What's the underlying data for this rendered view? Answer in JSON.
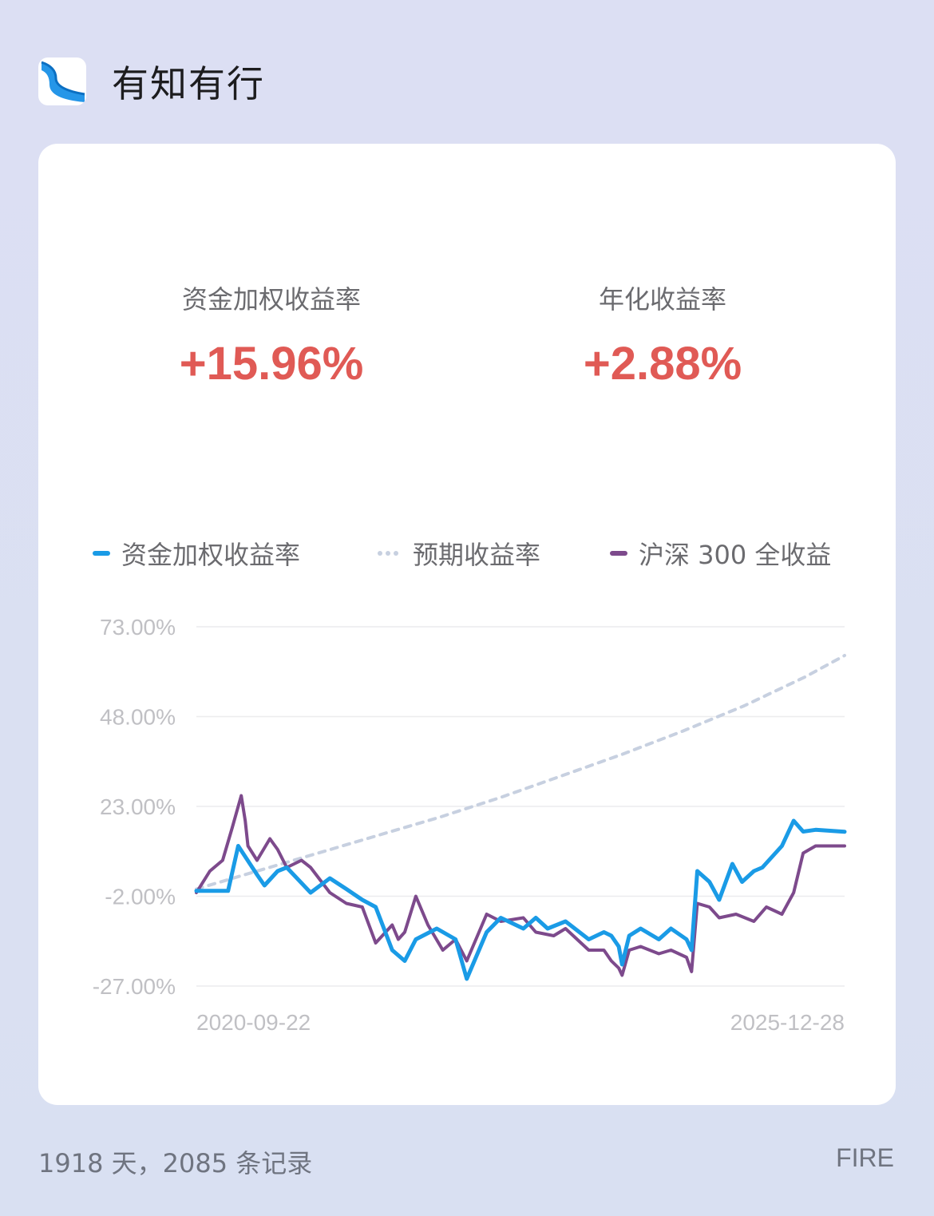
{
  "app": {
    "name": "有知有行",
    "logo_icon": "wave-logo-icon"
  },
  "stats": [
    {
      "label": "资金加权收益率",
      "value": "+15.96%"
    },
    {
      "label": "年化收益率",
      "value": "+2.88%"
    }
  ],
  "colors": {
    "positive": "#e05a55",
    "fund": "#1a9be6",
    "expected": "#c7d0e0",
    "index": "#7d4a8c"
  },
  "chart_data": {
    "type": "line",
    "y_ticks": [
      "73.00%",
      "48.00%",
      "23.00%",
      "-2.00%",
      "-27.00%"
    ],
    "ylim": [
      -27,
      73
    ],
    "grid": true,
    "x_ticks": [
      "2020-09-22",
      "2025-12-28"
    ],
    "xlim": [
      "2020-09-22",
      "2025-12-28"
    ],
    "legend_position": "top",
    "series": [
      {
        "name": "资金加权收益率",
        "style": "solid",
        "color": "#1a9be6",
        "x": [
          "2020-09-22",
          "2020-11-01",
          "2020-12-09",
          "2020-12-17",
          "2020-12-25",
          "2021-01-24",
          "2021-03-21",
          "2021-04-12",
          "2021-05-21",
          "2021-06-17",
          "2021-08-27",
          "2021-10-23",
          "2021-12-11",
          "2022-01-27",
          "2022-03-08",
          "2022-04-26",
          "2022-06-02",
          "2022-07-05",
          "2022-09-05",
          "2022-10-31",
          "2022-12-03",
          "2023-01-31",
          "2023-03-14",
          "2023-05-20",
          "2023-06-26",
          "2023-07-31",
          "2023-09-22",
          "2023-11-30",
          "2024-01-14",
          "2024-02-05",
          "2024-02-27",
          "2024-03-08",
          "2024-03-29",
          "2024-05-02",
          "2024-06-25",
          "2024-07-31",
          "2024-09-15",
          "2024-09-30",
          "2024-10-17",
          "2024-11-22",
          "2024-12-21",
          "2025-01-29",
          "2025-02-27",
          "2025-04-03",
          "2025-04-28",
          "2025-06-25",
          "2025-07-30",
          "2025-08-27",
          "2025-10-03",
          "2025-12-28"
        ],
        "values": [
          -0.5,
          -0.5,
          -0.5,
          -0.5,
          -0.5,
          12,
          4,
          1,
          5,
          6,
          -1,
          3,
          0,
          -3,
          -5,
          -17,
          -20,
          -14,
          -11,
          -14,
          -25,
          -12,
          -8,
          -11,
          -8,
          -11,
          -9,
          -14,
          -12,
          -13,
          -16,
          -21,
          -13,
          -11,
          -14,
          -11,
          -14,
          -17,
          5,
          2,
          -3,
          7,
          2,
          5,
          6,
          12,
          19,
          16,
          16.5,
          15.96
        ]
      },
      {
        "name": "预期收益率",
        "style": "dashed",
        "color": "#c7d0e0",
        "x": [
          "2020-09-22",
          "2021-03-21",
          "2021-09-18",
          "2022-03-17",
          "2022-09-14",
          "2023-03-13",
          "2023-09-10",
          "2024-03-08",
          "2024-09-05",
          "2025-03-05",
          "2025-09-01",
          "2025-12-28"
        ],
        "values": [
          0,
          5,
          10,
          15,
          20,
          25.5,
          31.5,
          37.5,
          44,
          51,
          59,
          65
        ]
      },
      {
        "name": "沪深 300 全收益",
        "style": "solid",
        "color": "#7d4a8c",
        "x": [
          "2020-09-22",
          "2020-11-01",
          "2020-12-09",
          "2021-01-06",
          "2021-02-02",
          "2021-02-14",
          "2021-02-22",
          "2021-03-21",
          "2021-04-28",
          "2021-05-21",
          "2021-06-17",
          "2021-07-31",
          "2021-08-27",
          "2021-10-23",
          "2021-12-11",
          "2022-01-27",
          "2022-03-08",
          "2022-04-26",
          "2022-05-14",
          "2022-06-02",
          "2022-07-05",
          "2022-08-10",
          "2022-09-23",
          "2022-10-31",
          "2022-12-03",
          "2023-01-31",
          "2023-03-14",
          "2023-05-20",
          "2023-06-26",
          "2023-08-18",
          "2023-09-22",
          "2023-11-30",
          "2024-01-14",
          "2024-02-05",
          "2024-02-27",
          "2024-03-08",
          "2024-03-29",
          "2024-05-02",
          "2024-06-25",
          "2024-07-31",
          "2024-09-15",
          "2024-09-30",
          "2024-10-17",
          "2024-11-22",
          "2024-12-21",
          "2025-02-09",
          "2025-04-03",
          "2025-05-10",
          "2025-06-25",
          "2025-07-30",
          "2025-08-27",
          "2025-10-03",
          "2025-12-28"
        ],
        "values": [
          -1,
          5,
          8,
          17,
          26,
          19,
          12,
          8,
          14,
          11,
          6,
          8,
          6,
          -1,
          -4,
          -5,
          -15,
          -10,
          -14,
          -12,
          -2,
          -10,
          -17,
          -14,
          -20,
          -7,
          -9,
          -8,
          -12,
          -13,
          -11,
          -17,
          -17,
          -20,
          -22,
          -24,
          -17,
          -16,
          -18,
          -17,
          -19,
          -23,
          -4,
          -5,
          -8,
          -7,
          -9,
          -5,
          -7,
          -1,
          10,
          12,
          12
        ]
      }
    ]
  },
  "footer": {
    "summary": "1918 天，2085 条记录",
    "tag": "FIRE"
  }
}
